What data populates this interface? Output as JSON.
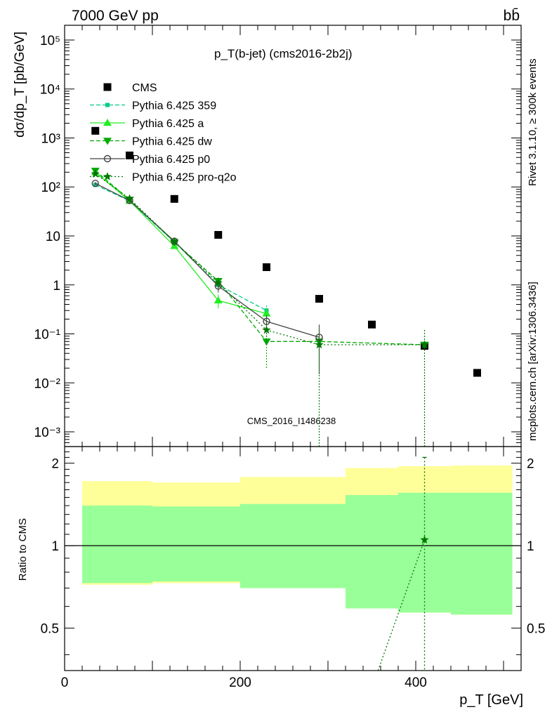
{
  "header": {
    "energy_label": "7000 GeV pp",
    "process_label": "bb̄",
    "plot_title": "p_T(b-jet) (cms2016-2b2j)",
    "rivet_label": "Rivet 3.1.10, ≥ 300k events",
    "source_label": "mcplots.cern.ch [arXiv:1306.3436]",
    "analysis_label": "CMS_2016_I1486238"
  },
  "axes": {
    "main_ylabel": "dσ/dp_T [pb/GeV]",
    "ratio_ylabel": "Ratio to CMS",
    "xlabel": "p_T [GeV]",
    "x_ticks": [
      "0",
      "200",
      "400"
    ],
    "main_y_ticks": [
      "10⁵",
      "10⁴",
      "10³",
      "10²",
      "10",
      "1",
      "10⁻¹",
      "10⁻²",
      "10⁻³"
    ],
    "ratio_y_ticks": [
      "0.5",
      "1",
      "2"
    ]
  },
  "colors": {
    "data": "#000000",
    "p359": "#00cc88",
    "pa": "#22ee22",
    "pdw": "#00aa00",
    "pp0": "#444444",
    "pq2o": "#007700",
    "band_inner": "#99ff99",
    "band_outer": "#ffff99"
  },
  "chart_data": [
    {
      "type": "scatter",
      "panel": "main",
      "xlim": [
        0,
        520
      ],
      "ylim": [
        0.0005,
        200000
      ],
      "yscale": "log",
      "series": [
        {
          "name": "CMS",
          "key": "data",
          "marker": "square",
          "line": "none",
          "x": [
            35,
            74,
            125,
            175,
            230,
            290,
            350,
            410,
            470
          ],
          "y": [
            1400,
            440,
            57,
            10.5,
            2.3,
            0.52,
            0.155,
            0.057,
            0.016
          ]
        },
        {
          "name": "Pythia 6.425 359",
          "key": "p359",
          "marker": "smallsquare",
          "line": "dashed",
          "x": [
            35,
            74,
            125,
            175,
            230
          ],
          "y": [
            110,
            52,
            7.5,
            1.0,
            0.3
          ],
          "err": [
            8,
            3,
            0.6,
            0.15,
            0.08
          ]
        },
        {
          "name": "Pythia 6.425 a",
          "key": "pa",
          "marker": "triangle-up",
          "line": "solid",
          "x": [
            35,
            74,
            125,
            175,
            230
          ],
          "y": [
            200,
            52,
            6.2,
            0.48,
            0.26
          ],
          "err": [
            12,
            3,
            0.6,
            0.15,
            0.08
          ]
        },
        {
          "name": "Pythia 6.425 dw",
          "key": "pdw",
          "marker": "triangle-down",
          "line": "dashed",
          "x": [
            35,
            74,
            125,
            175,
            230,
            290,
            410
          ],
          "y": [
            215,
            55,
            7.5,
            1.2,
            0.07,
            0.07,
            0.06
          ],
          "err": [
            14,
            3,
            0.6,
            0.2,
            0.05,
            0.05,
            0.06
          ]
        },
        {
          "name": "Pythia 6.425 p0",
          "key": "pp0",
          "marker": "circle-open",
          "line": "solid",
          "x": [
            35,
            74,
            125,
            175,
            230,
            290
          ],
          "y": [
            118,
            53,
            7.8,
            0.95,
            0.18,
            0.085
          ],
          "err": [
            8,
            3,
            0.6,
            0.25,
            0.06,
            0.07
          ]
        },
        {
          "name": "Pythia 6.425 pro-q2o",
          "key": "pq2o",
          "marker": "star",
          "line": "dotted",
          "x": [
            35,
            74,
            125,
            175,
            230,
            290,
            410
          ],
          "y": [
            185,
            58,
            7.6,
            1.1,
            0.12,
            0.06,
            0.06
          ],
          "err": [
            12,
            3,
            0.6,
            0.3,
            0.06,
            0.06,
            0.06
          ]
        }
      ]
    },
    {
      "type": "area",
      "panel": "ratio",
      "xlim": [
        0,
        520
      ],
      "ylim": [
        0.35,
        2.3
      ],
      "yscale": "log",
      "reference_line": 1,
      "bin_edges": [
        20,
        100,
        200,
        320,
        380,
        440,
        510
      ],
      "bands": [
        {
          "key": "band_outer",
          "low": [
            0.72,
            0.73,
            0.7,
            0.59,
            0.57,
            0.56
          ],
          "high": [
            1.72,
            1.7,
            1.78,
            1.92,
            1.95,
            1.96
          ]
        },
        {
          "key": "band_inner",
          "low": [
            0.73,
            0.74,
            0.7,
            0.59,
            0.57,
            0.56
          ],
          "high": [
            1.4,
            1.39,
            1.42,
            1.53,
            1.56,
            1.56
          ]
        }
      ],
      "series": [
        {
          "name": "Pythia 6.425 pro-q2o",
          "key": "pq2o",
          "marker": "star",
          "x": [
            410
          ],
          "y": [
            1.05
          ],
          "err_low": [
            0.7
          ],
          "err_high": [
            2.1
          ],
          "line_from": [
            357,
            0.35
          ]
        }
      ]
    }
  ]
}
